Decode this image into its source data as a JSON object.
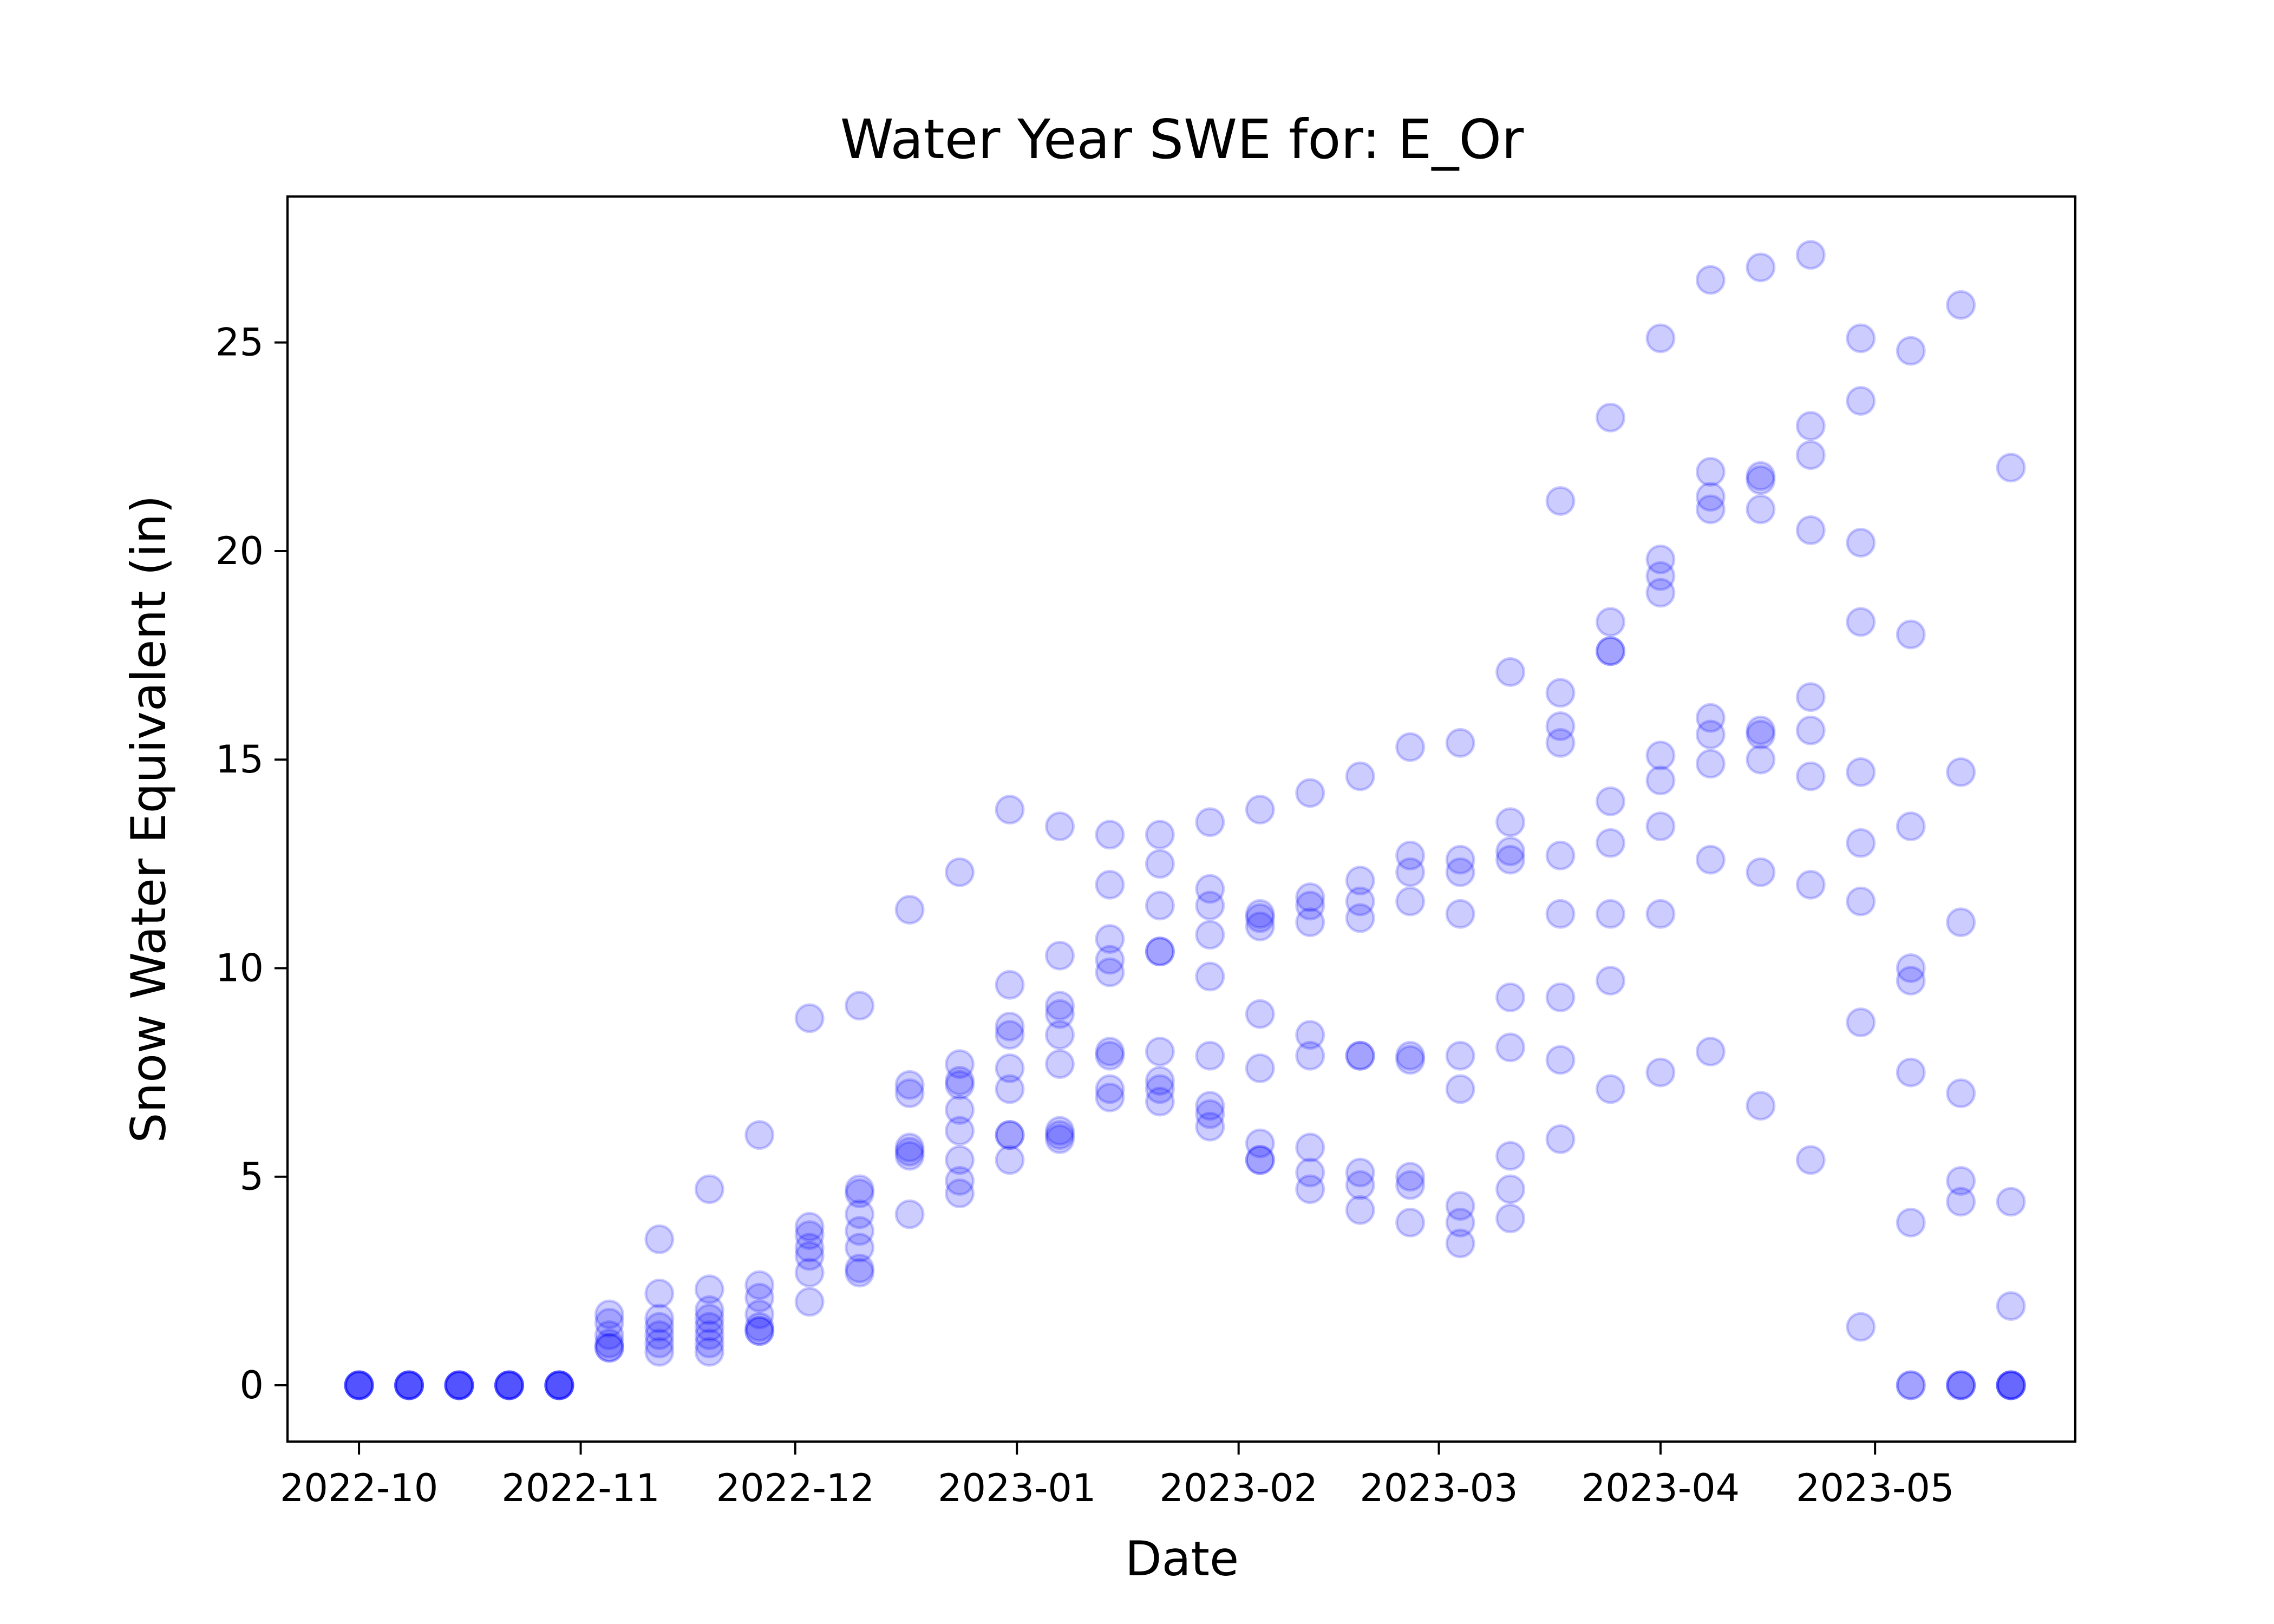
{
  "chart_data": {
    "type": "scatter",
    "title": "Water Year SWE for: E_Or",
    "xlabel": "Date",
    "ylabel": "Snow Water Equivalent (in)",
    "xlim": [
      "2022-09-21",
      "2023-05-29"
    ],
    "ylim": [
      -1.35,
      28.5
    ],
    "x_ticks": [
      "2022-10",
      "2022-11",
      "2022-12",
      "2023-01",
      "2023-02",
      "2023-03",
      "2023-04",
      "2023-05"
    ],
    "x_tick_dates": [
      "2022-10-01",
      "2022-11-01",
      "2022-12-01",
      "2023-01-01",
      "2023-02-01",
      "2023-03-01",
      "2023-04-01",
      "2023-05-01"
    ],
    "y_ticks": [
      0,
      5,
      10,
      15,
      20,
      25
    ],
    "marker_color": "#0000ff",
    "marker_alpha": 0.2,
    "grid": false,
    "legend": "none",
    "points": [
      [
        "2022-10-01",
        [
          0,
          0,
          0,
          0,
          0
        ]
      ],
      [
        "2022-10-08",
        [
          0,
          0,
          0,
          0,
          0
        ]
      ],
      [
        "2022-10-15",
        [
          0,
          0,
          0,
          0,
          0
        ]
      ],
      [
        "2022-10-22",
        [
          0,
          0,
          0,
          0,
          0
        ]
      ],
      [
        "2022-10-29",
        [
          0,
          0,
          0,
          0,
          0
        ]
      ],
      [
        "2022-11-05",
        [
          0.9,
          0.9,
          1.0,
          1.2,
          1.5,
          1.7
        ]
      ],
      [
        "2022-11-12",
        [
          0.8,
          1.0,
          1.2,
          1.4,
          1.6,
          2.2,
          3.5
        ]
      ],
      [
        "2022-11-19",
        [
          0.8,
          1.0,
          1.2,
          1.4,
          1.6,
          1.8,
          2.3,
          4.7
        ]
      ],
      [
        "2022-11-26",
        [
          1.3,
          1.3,
          1.4,
          1.7,
          2.1,
          2.4,
          6.0
        ]
      ],
      [
        "2022-12-03",
        [
          2.0,
          2.7,
          3.1,
          3.3,
          3.6,
          3.8,
          8.8
        ]
      ],
      [
        "2022-12-10",
        [
          2.7,
          2.8,
          3.3,
          3.7,
          4.1,
          4.6,
          4.7,
          9.1
        ]
      ],
      [
        "2022-12-17",
        [
          4.1,
          5.5,
          5.6,
          5.7,
          7.0,
          7.2,
          11.4
        ]
      ],
      [
        "2022-12-24",
        [
          4.6,
          4.9,
          5.4,
          6.1,
          6.6,
          7.2,
          7.3,
          7.7,
          12.3
        ]
      ],
      [
        "2022-12-31",
        [
          5.4,
          6.0,
          6.0,
          7.1,
          7.6,
          8.4,
          8.6,
          9.6,
          13.8
        ]
      ],
      [
        "2023-01-07",
        [
          5.9,
          6.0,
          6.1,
          7.7,
          8.4,
          8.9,
          9.1,
          10.3,
          13.4
        ]
      ],
      [
        "2023-01-14",
        [
          6.9,
          7.1,
          7.9,
          8.0,
          9.9,
          10.2,
          10.7,
          12.0,
          13.2
        ]
      ],
      [
        "2023-01-21",
        [
          6.8,
          7.1,
          7.3,
          8.0,
          10.4,
          10.4,
          11.5,
          12.5,
          13.2
        ]
      ],
      [
        "2023-01-28",
        [
          6.2,
          6.5,
          6.7,
          7.9,
          9.8,
          10.8,
          11.5,
          11.9,
          13.5
        ]
      ],
      [
        "2023-02-04",
        [
          5.4,
          5.4,
          5.8,
          7.6,
          8.9,
          11.0,
          11.2,
          11.3,
          13.8
        ]
      ],
      [
        "2023-02-11",
        [
          4.7,
          5.1,
          5.7,
          7.9,
          8.4,
          11.1,
          11.5,
          11.7,
          14.2
        ]
      ],
      [
        "2023-02-18",
        [
          4.2,
          4.8,
          5.1,
          7.9,
          7.9,
          11.2,
          11.6,
          12.1,
          14.6
        ]
      ],
      [
        "2023-02-25",
        [
          3.9,
          4.8,
          5.0,
          7.8,
          7.9,
          11.6,
          12.3,
          12.7,
          15.3
        ]
      ],
      [
        "2023-03-04",
        [
          3.4,
          3.9,
          4.3,
          7.1,
          7.9,
          11.3,
          12.3,
          12.6,
          15.4
        ]
      ],
      [
        "2023-03-11",
        [
          4.0,
          4.7,
          5.5,
          8.1,
          9.3,
          12.6,
          12.8,
          13.5,
          17.1
        ]
      ],
      [
        "2023-03-18",
        [
          5.9,
          7.8,
          9.3,
          11.3,
          12.7,
          15.4,
          15.8,
          16.6,
          21.2
        ]
      ],
      [
        "2023-03-25",
        [
          7.1,
          9.7,
          11.3,
          13.0,
          14.0,
          17.6,
          17.6,
          18.3,
          23.2
        ]
      ],
      [
        "2023-04-01",
        [
          7.5,
          11.3,
          13.4,
          14.5,
          15.1,
          19.0,
          19.4,
          19.8,
          25.1
        ]
      ],
      [
        "2023-04-08",
        [
          8.0,
          12.6,
          14.9,
          15.6,
          16.0,
          21.0,
          21.3,
          21.9,
          26.5
        ]
      ],
      [
        "2023-04-15",
        [
          6.7,
          12.3,
          15.0,
          15.6,
          15.7,
          21.0,
          21.7,
          21.8,
          26.8
        ]
      ],
      [
        "2023-04-22",
        [
          5.4,
          12.0,
          14.6,
          15.7,
          16.5,
          20.5,
          22.3,
          23.0,
          27.1
        ]
      ],
      [
        "2023-04-29",
        [
          1.4,
          8.7,
          11.6,
          13.0,
          14.7,
          18.3,
          20.2,
          23.6,
          25.1
        ]
      ],
      [
        "2023-05-06",
        [
          0,
          0,
          3.9,
          7.5,
          9.7,
          10.0,
          13.4,
          18.0,
          24.8
        ]
      ],
      [
        "2023-05-13",
        [
          0,
          0,
          0,
          4.4,
          4.9,
          7.0,
          11.1,
          14.7,
          25.9
        ]
      ],
      [
        "2023-05-20",
        [
          0,
          0,
          0,
          0,
          1.9,
          4.4,
          22.0
        ]
      ]
    ]
  }
}
